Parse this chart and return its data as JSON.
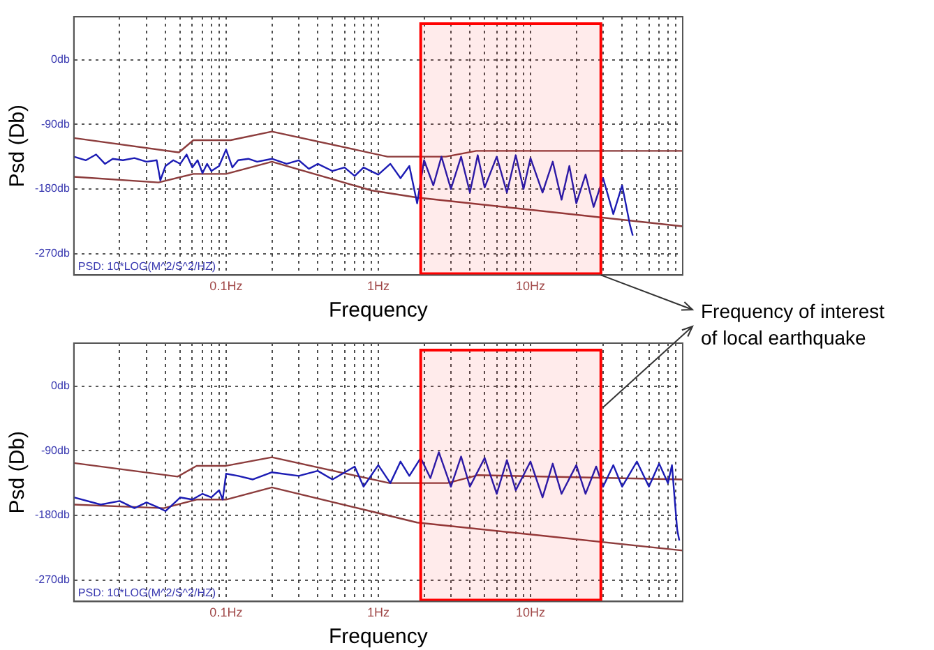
{
  "chart_data": [
    {
      "type": "line",
      "xlabel": "Frequency",
      "ylabel": "Psd (Db)",
      "log": "x",
      "grid": true,
      "legend": false,
      "annotations": [
        "PSD: 10*LOG(M^2/S^2/HZ)",
        {
          "text": "Frequency of interest of local earthquake",
          "x": 29,
          "y": -300
        }
      ],
      "xlim": [
        0.01,
        100
      ],
      "ylim": [
        -300,
        60
      ],
      "xticks": [
        {
          "value": 0.02,
          "label": null
        },
        {
          "value": 0.03,
          "label": null
        },
        {
          "value": 0.04,
          "label": null
        },
        {
          "value": 0.05,
          "label": null
        },
        {
          "value": 0.06,
          "label": null
        },
        {
          "value": 0.07,
          "label": null
        },
        {
          "value": 0.08,
          "label": null
        },
        {
          "value": 0.09,
          "label": null
        },
        {
          "value": 0.1,
          "label": "0.1Hz"
        },
        {
          "value": 0.2,
          "label": null
        },
        {
          "value": 0.3,
          "label": null
        },
        {
          "value": 0.4,
          "label": null
        },
        {
          "value": 0.5,
          "label": null
        },
        {
          "value": 0.6,
          "label": null
        },
        {
          "value": 0.7,
          "label": null
        },
        {
          "value": 0.8,
          "label": null
        },
        {
          "value": 0.9,
          "label": null
        },
        {
          "value": 1,
          "label": "1Hz"
        },
        {
          "value": 2,
          "label": null
        },
        {
          "value": 3,
          "label": null
        },
        {
          "value": 4,
          "label": null
        },
        {
          "value": 5,
          "label": null
        },
        {
          "value": 6,
          "label": null
        },
        {
          "value": 7,
          "label": null
        },
        {
          "value": 8,
          "label": null
        },
        {
          "value": 9,
          "label": null
        },
        {
          "value": 10,
          "label": "10Hz"
        },
        {
          "value": 20,
          "label": null
        },
        {
          "value": 30,
          "label": null
        },
        {
          "value": 40,
          "label": null
        },
        {
          "value": 50,
          "label": null
        },
        {
          "value": 60,
          "label": null
        },
        {
          "value": 70,
          "label": null
        },
        {
          "value": 80,
          "label": null
        },
        {
          "value": 90,
          "label": null
        }
      ],
      "yticks": [
        {
          "value": -270,
          "label": "-270db"
        },
        {
          "value": -180,
          "label": "-180db"
        },
        {
          "value": -90,
          "label": "-90db"
        },
        {
          "value": 0,
          "label": "0db"
        }
      ],
      "bands": [
        {
          "axis": "x",
          "from": 1.9,
          "to": 29,
          "color": "#ff0000"
        }
      ],
      "series": [
        {
          "color": "#1c1cb4",
          "x": [
            0.01,
            0.012,
            0.014,
            0.016,
            0.018,
            0.021,
            0.025,
            0.03,
            0.035,
            0.037,
            0.04,
            0.045,
            0.05,
            0.055,
            0.06,
            0.065,
            0.07,
            0.075,
            0.08,
            0.09,
            0.1,
            0.11,
            0.12,
            0.14,
            0.16,
            0.2,
            0.25,
            0.3,
            0.35,
            0.4,
            0.5,
            0.6,
            0.7,
            0.8,
            1,
            1.2,
            1.4,
            1.6,
            1.8,
            2,
            2.3,
            2.6,
            3,
            3.5,
            4,
            4.5,
            5,
            6,
            7,
            8,
            9,
            10,
            12,
            14,
            16,
            18,
            20,
            23,
            26,
            30,
            35,
            40,
            45,
            47
          ],
          "values": [
            -135,
            -140,
            -132,
            -145,
            -138,
            -140,
            -137,
            -142,
            -140,
            -168,
            -148,
            -140,
            -145,
            -132,
            -150,
            -140,
            -158,
            -145,
            -155,
            -148,
            -125,
            -150,
            -140,
            -138,
            -142,
            -138,
            -145,
            -140,
            -152,
            -145,
            -155,
            -150,
            -162,
            -150,
            -160,
            -145,
            -165,
            -148,
            -200,
            -140,
            -175,
            -135,
            -180,
            -135,
            -185,
            -133,
            -178,
            -135,
            -185,
            -133,
            -180,
            -137,
            -185,
            -142,
            -195,
            -148,
            -200,
            -160,
            -205,
            -165,
            -215,
            -175,
            -230,
            -245
          ]
        },
        {
          "color": "#8c3c3c",
          "x": [
            0.01,
            0.049,
            0.061,
            0.107,
            0.2,
            1.15,
            2.78,
            4.4,
            100
          ],
          "values": [
            -109,
            -129,
            -112,
            -112,
            -100,
            -135,
            -135,
            -127,
            -127
          ]
        },
        {
          "color": "#8c3c3c",
          "x": [
            0.01,
            0.036,
            0.061,
            0.1,
            0.2,
            0.9,
            1.8,
            100
          ],
          "values": [
            -163,
            -171,
            -159,
            -159,
            -142,
            -182,
            -192,
            -232
          ]
        }
      ]
    },
    {
      "type": "line",
      "xlabel": "Frequency",
      "ylabel": "Psd (Db)",
      "log": "x",
      "grid": true,
      "legend": false,
      "annotations": [
        "PSD: 10*LOG(M^2/S^2/HZ)"
      ],
      "xlim": [
        0.01,
        100
      ],
      "ylim": [
        -300,
        60
      ],
      "xticks": [
        {
          "value": 0.02,
          "label": null
        },
        {
          "value": 0.03,
          "label": null
        },
        {
          "value": 0.04,
          "label": null
        },
        {
          "value": 0.05,
          "label": null
        },
        {
          "value": 0.06,
          "label": null
        },
        {
          "value": 0.07,
          "label": null
        },
        {
          "value": 0.08,
          "label": null
        },
        {
          "value": 0.09,
          "label": null
        },
        {
          "value": 0.1,
          "label": "0.1Hz"
        },
        {
          "value": 0.2,
          "label": null
        },
        {
          "value": 0.3,
          "label": null
        },
        {
          "value": 0.4,
          "label": null
        },
        {
          "value": 0.5,
          "label": null
        },
        {
          "value": 0.6,
          "label": null
        },
        {
          "value": 0.7,
          "label": null
        },
        {
          "value": 0.8,
          "label": null
        },
        {
          "value": 0.9,
          "label": null
        },
        {
          "value": 1,
          "label": "1Hz"
        },
        {
          "value": 2,
          "label": null
        },
        {
          "value": 3,
          "label": null
        },
        {
          "value": 4,
          "label": null
        },
        {
          "value": 5,
          "label": null
        },
        {
          "value": 6,
          "label": null
        },
        {
          "value": 7,
          "label": null
        },
        {
          "value": 8,
          "label": null
        },
        {
          "value": 9,
          "label": null
        },
        {
          "value": 10,
          "label": "10Hz"
        },
        {
          "value": 20,
          "label": null
        },
        {
          "value": 30,
          "label": null
        },
        {
          "value": 40,
          "label": null
        },
        {
          "value": 50,
          "label": null
        },
        {
          "value": 60,
          "label": null
        },
        {
          "value": 70,
          "label": null
        },
        {
          "value": 80,
          "label": null
        },
        {
          "value": 90,
          "label": null
        }
      ],
      "yticks": [
        {
          "value": -270,
          "label": "-270db"
        },
        {
          "value": -180,
          "label": "-180db"
        },
        {
          "value": -90,
          "label": "-90db"
        },
        {
          "value": 0,
          "label": "0db"
        }
      ],
      "bands": [
        {
          "axis": "x",
          "from": 1.9,
          "to": 29,
          "color": "#ff0000"
        }
      ],
      "series": [
        {
          "color": "#1c1cb4",
          "x": [
            0.01,
            0.015,
            0.02,
            0.025,
            0.03,
            0.035,
            0.04,
            0.05,
            0.06,
            0.07,
            0.08,
            0.09,
            0.095,
            0.1,
            0.12,
            0.15,
            0.2,
            0.3,
            0.4,
            0.5,
            0.7,
            0.8,
            1,
            1.2,
            1.4,
            1.6,
            1.9,
            2.2,
            2.5,
            3,
            3.5,
            4,
            5,
            6,
            7,
            8,
            10,
            12,
            14,
            16,
            20,
            23,
            27,
            30,
            35,
            40,
            50,
            60,
            70,
            80,
            85,
            88,
            92,
            95
          ],
          "values": [
            -155,
            -165,
            -160,
            -170,
            -162,
            -168,
            -174,
            -155,
            -158,
            -150,
            -155,
            -145,
            -158,
            -122,
            -125,
            -130,
            -120,
            -125,
            -118,
            -130,
            -112,
            -140,
            -110,
            -135,
            -105,
            -125,
            -100,
            -128,
            -92,
            -140,
            -98,
            -140,
            -100,
            -150,
            -103,
            -145,
            -105,
            -155,
            -108,
            -150,
            -110,
            -150,
            -112,
            -140,
            -110,
            -140,
            -105,
            -140,
            -108,
            -135,
            -110,
            -150,
            -200,
            -215
          ]
        },
        {
          "color": "#8c3c3c",
          "x": [
            0.01,
            0.048,
            0.064,
            0.1,
            0.2,
            1.18,
            2.85,
            4.5,
            100
          ],
          "values": [
            -107,
            -126,
            -111,
            -111,
            -99,
            -135,
            -135,
            -124,
            -130
          ]
        },
        {
          "color": "#8c3c3c",
          "x": [
            0.01,
            0.039,
            0.064,
            0.1,
            0.2,
            0.88,
            1.8,
            100
          ],
          "values": [
            -165,
            -170,
            -158,
            -158,
            -141,
            -174,
            -190,
            -229
          ]
        }
      ]
    }
  ]
}
